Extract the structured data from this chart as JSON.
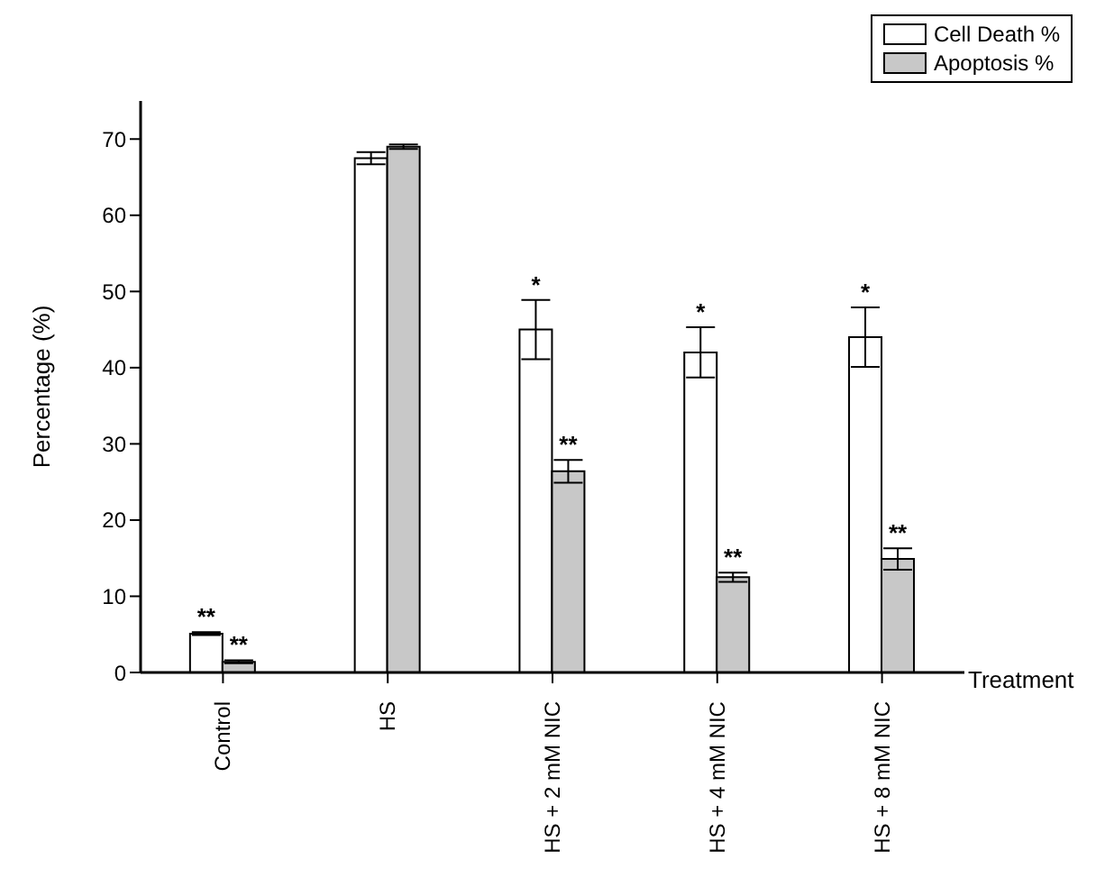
{
  "chart_data": {
    "type": "bar",
    "xlabel": "Treatment",
    "ylabel": "Percentage (%)",
    "categories": [
      "Control",
      "HS",
      "HS + 2 mM NIC",
      "HS + 4 mM NIC",
      "HS + 8 mM NIC"
    ],
    "series": [
      {
        "name": "Cell Death %",
        "color": "#ffffff",
        "values": [
          5.1,
          67.5,
          45,
          42,
          44
        ],
        "errors": [
          0.2,
          0.8,
          3.9,
          3.3,
          3.9
        ]
      },
      {
        "name": "Apoptosis %",
        "color": "#c8c8c8",
        "values": [
          1.4,
          69,
          26.4,
          12.5,
          14.9
        ],
        "errors": [
          0.2,
          0.3,
          1.5,
          0.6,
          1.4
        ]
      }
    ],
    "ylim": [
      0,
      75
    ],
    "yticks": [
      0,
      10,
      20,
      30,
      40,
      50,
      60,
      70
    ],
    "grid": false,
    "legend": "top right",
    "annotations": [
      {
        "text": "**",
        "x": "Control",
        "y": 5.3
      },
      {
        "text": "**",
        "x": "Control",
        "y": 1.6
      },
      {
        "text": "*",
        "x": "HS + 2 mM NIC",
        "y": 48.9
      },
      {
        "text": "**",
        "x": "HS + 2 mM NIC",
        "y": 27.9
      },
      {
        "text": "*",
        "x": "HS + 4 mM NIC",
        "y": 45.3
      },
      {
        "text": "**",
        "x": "HS + 4 mM NIC",
        "y": 13.1
      },
      {
        "text": "*",
        "x": "HS + 8 mM NIC",
        "y": 47.9
      },
      {
        "text": "**",
        "x": "HS + 8 mM NIC",
        "y": 16.3
      }
    ]
  }
}
